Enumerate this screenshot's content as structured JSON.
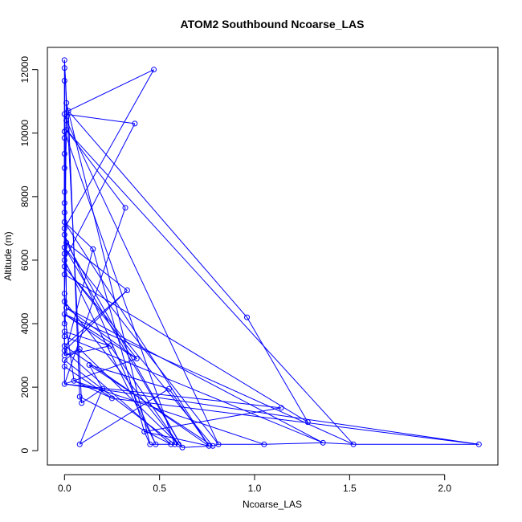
{
  "chart_data": {
    "type": "line",
    "title": "ATOM2 Southbound Ncoarse_LAS",
    "xlabel": "Ncoarse_LAS",
    "ylabel": "Altitude (m)",
    "xlim": [
      -0.09,
      2.28
    ],
    "ylim": [
      -450,
      12700
    ],
    "xticks": [
      0.0,
      0.5,
      1.0,
      1.5,
      2.0
    ],
    "xtick_labels": [
      "0.0",
      "0.5",
      "1.0",
      "1.5",
      "2.0"
    ],
    "yticks": [
      0,
      2000,
      4000,
      6000,
      8000,
      10000,
      12000
    ],
    "ytick_labels": [
      "0",
      "2000",
      "4000",
      "6000",
      "8000",
      "10000",
      "12000"
    ],
    "grid": false,
    "legend": "none",
    "series": [
      {
        "color": "#0000ff",
        "marker": "open-circle",
        "points": [
          [
            0.0,
            12300
          ],
          [
            0.0,
            12050
          ],
          [
            0.0,
            11650
          ],
          [
            0.47,
            12000
          ],
          [
            0.01,
            10950
          ],
          [
            0.02,
            10700
          ],
          [
            0.37,
            10300
          ],
          [
            0.0,
            10600
          ],
          [
            0.01,
            10400
          ],
          [
            0.32,
            7650
          ],
          [
            0.01,
            10100
          ],
          [
            0.96,
            4200
          ],
          [
            1.28,
            900
          ],
          [
            0.0,
            10050
          ],
          [
            0.0,
            9850
          ],
          [
            0.0,
            9350
          ],
          [
            0.0,
            8900
          ],
          [
            0.0,
            8150
          ],
          [
            0.0,
            7800
          ],
          [
            0.0,
            7500
          ],
          [
            0.0,
            7200
          ],
          [
            0.15,
            6350
          ],
          [
            0.0,
            7000
          ],
          [
            0.0,
            6800
          ],
          [
            0.01,
            6550
          ],
          [
            0.33,
            5050
          ],
          [
            0.0,
            6400
          ],
          [
            0.0,
            6200
          ],
          [
            0.0,
            6000
          ],
          [
            0.0,
            5800
          ],
          [
            0.0,
            5550
          ],
          [
            0.0,
            4950
          ],
          [
            0.0,
            4700
          ],
          [
            0.01,
            4500
          ],
          [
            0.38,
            2900
          ],
          [
            0.0,
            4300
          ],
          [
            0.0,
            4000
          ],
          [
            0.0,
            3750
          ],
          [
            0.24,
            3300
          ],
          [
            0.0,
            3600
          ],
          [
            0.0,
            3300
          ],
          [
            0.0,
            3150
          ],
          [
            0.0,
            3000
          ],
          [
            0.08,
            3200
          ],
          [
            0.0,
            2850
          ],
          [
            0.0,
            2650
          ],
          [
            0.0,
            2100
          ],
          [
            1.14,
            1350
          ],
          [
            0.08,
            200
          ],
          [
            0.08,
            1700
          ],
          [
            0.09,
            1500
          ],
          [
            0.2,
            1950
          ],
          [
            0.13,
            2700
          ],
          [
            0.55,
            1950
          ],
          [
            0.76,
            150
          ],
          [
            0.42,
            600
          ],
          [
            0.45,
            200
          ],
          [
            0.48,
            200
          ],
          [
            0.56,
            200
          ],
          [
            0.58,
            200
          ],
          [
            0.6,
            200
          ],
          [
            0.62,
            100
          ],
          [
            0.78,
            150
          ],
          [
            0.81,
            200
          ],
          [
            1.05,
            200
          ],
          [
            1.36,
            250
          ],
          [
            1.52,
            200
          ],
          [
            2.18,
            200
          ],
          [
            0.25,
            1650
          ],
          [
            0.05,
            2200
          ]
        ]
      }
    ],
    "segments": [
      [
        0,
        4
      ],
      [
        0,
        33
      ],
      [
        0,
        50
      ],
      [
        1,
        19
      ],
      [
        2,
        30
      ],
      [
        3,
        5
      ],
      [
        3,
        22
      ],
      [
        4,
        5
      ],
      [
        4,
        35
      ],
      [
        5,
        11
      ],
      [
        5,
        49
      ],
      [
        5,
        56
      ],
      [
        6,
        7
      ],
      [
        6,
        28
      ],
      [
        7,
        8
      ],
      [
        7,
        30
      ],
      [
        8,
        10
      ],
      [
        8,
        63
      ],
      [
        9,
        10
      ],
      [
        9,
        46
      ],
      [
        10,
        18
      ],
      [
        10,
        66
      ],
      [
        11,
        12
      ],
      [
        12,
        30
      ],
      [
        13,
        14
      ],
      [
        13,
        59
      ],
      [
        14,
        15
      ],
      [
        15,
        16
      ],
      [
        16,
        17
      ],
      [
        17,
        18
      ],
      [
        18,
        19
      ],
      [
        19,
        20
      ],
      [
        20,
        21
      ],
      [
        21,
        42
      ],
      [
        22,
        23
      ],
      [
        23,
        24
      ],
      [
        24,
        25
      ],
      [
        24,
        31
      ],
      [
        24,
        61
      ],
      [
        25,
        40
      ],
      [
        25,
        41
      ],
      [
        26,
        27
      ],
      [
        26,
        63
      ],
      [
        27,
        28
      ],
      [
        27,
        36
      ],
      [
        28,
        29
      ],
      [
        28,
        57
      ],
      [
        29,
        34
      ],
      [
        29,
        62
      ],
      [
        30,
        31
      ],
      [
        31,
        32
      ],
      [
        31,
        33
      ],
      [
        32,
        33
      ],
      [
        33,
        34
      ],
      [
        33,
        36
      ],
      [
        33,
        65
      ],
      [
        34,
        35
      ],
      [
        34,
        46
      ],
      [
        35,
        36
      ],
      [
        35,
        38
      ],
      [
        35,
        69
      ],
      [
        35,
        66
      ],
      [
        36,
        37
      ],
      [
        37,
        38
      ],
      [
        37,
        39
      ],
      [
        37,
        40
      ],
      [
        38,
        42
      ],
      [
        38,
        60
      ],
      [
        39,
        40
      ],
      [
        39,
        65
      ],
      [
        40,
        41
      ],
      [
        40,
        54
      ],
      [
        41,
        42
      ],
      [
        41,
        58
      ],
      [
        42,
        43
      ],
      [
        43,
        44
      ],
      [
        43,
        60
      ],
      [
        44,
        45
      ],
      [
        45,
        46
      ],
      [
        45,
        68
      ],
      [
        46,
        47
      ],
      [
        46,
        67
      ],
      [
        47,
        55
      ],
      [
        48,
        51
      ],
      [
        48,
        53
      ],
      [
        49,
        50
      ],
      [
        50,
        51
      ],
      [
        51,
        52
      ],
      [
        52,
        53
      ],
      [
        53,
        54
      ],
      [
        54,
        55
      ],
      [
        55,
        56
      ],
      [
        56,
        57
      ],
      [
        57,
        58
      ],
      [
        58,
        59
      ],
      [
        59,
        60
      ],
      [
        60,
        61
      ],
      [
        61,
        62
      ],
      [
        62,
        63
      ],
      [
        63,
        64
      ],
      [
        64,
        65
      ],
      [
        65,
        66
      ],
      [
        66,
        67
      ],
      [
        67,
        68
      ],
      [
        68,
        69
      ],
      [
        69,
        64
      ],
      [
        20,
        54
      ],
      [
        23,
        57
      ],
      [
        26,
        61
      ],
      [
        32,
        60
      ],
      [
        44,
        59
      ],
      [
        21,
        55
      ],
      [
        52,
        62
      ],
      [
        49,
        58
      ]
    ]
  }
}
